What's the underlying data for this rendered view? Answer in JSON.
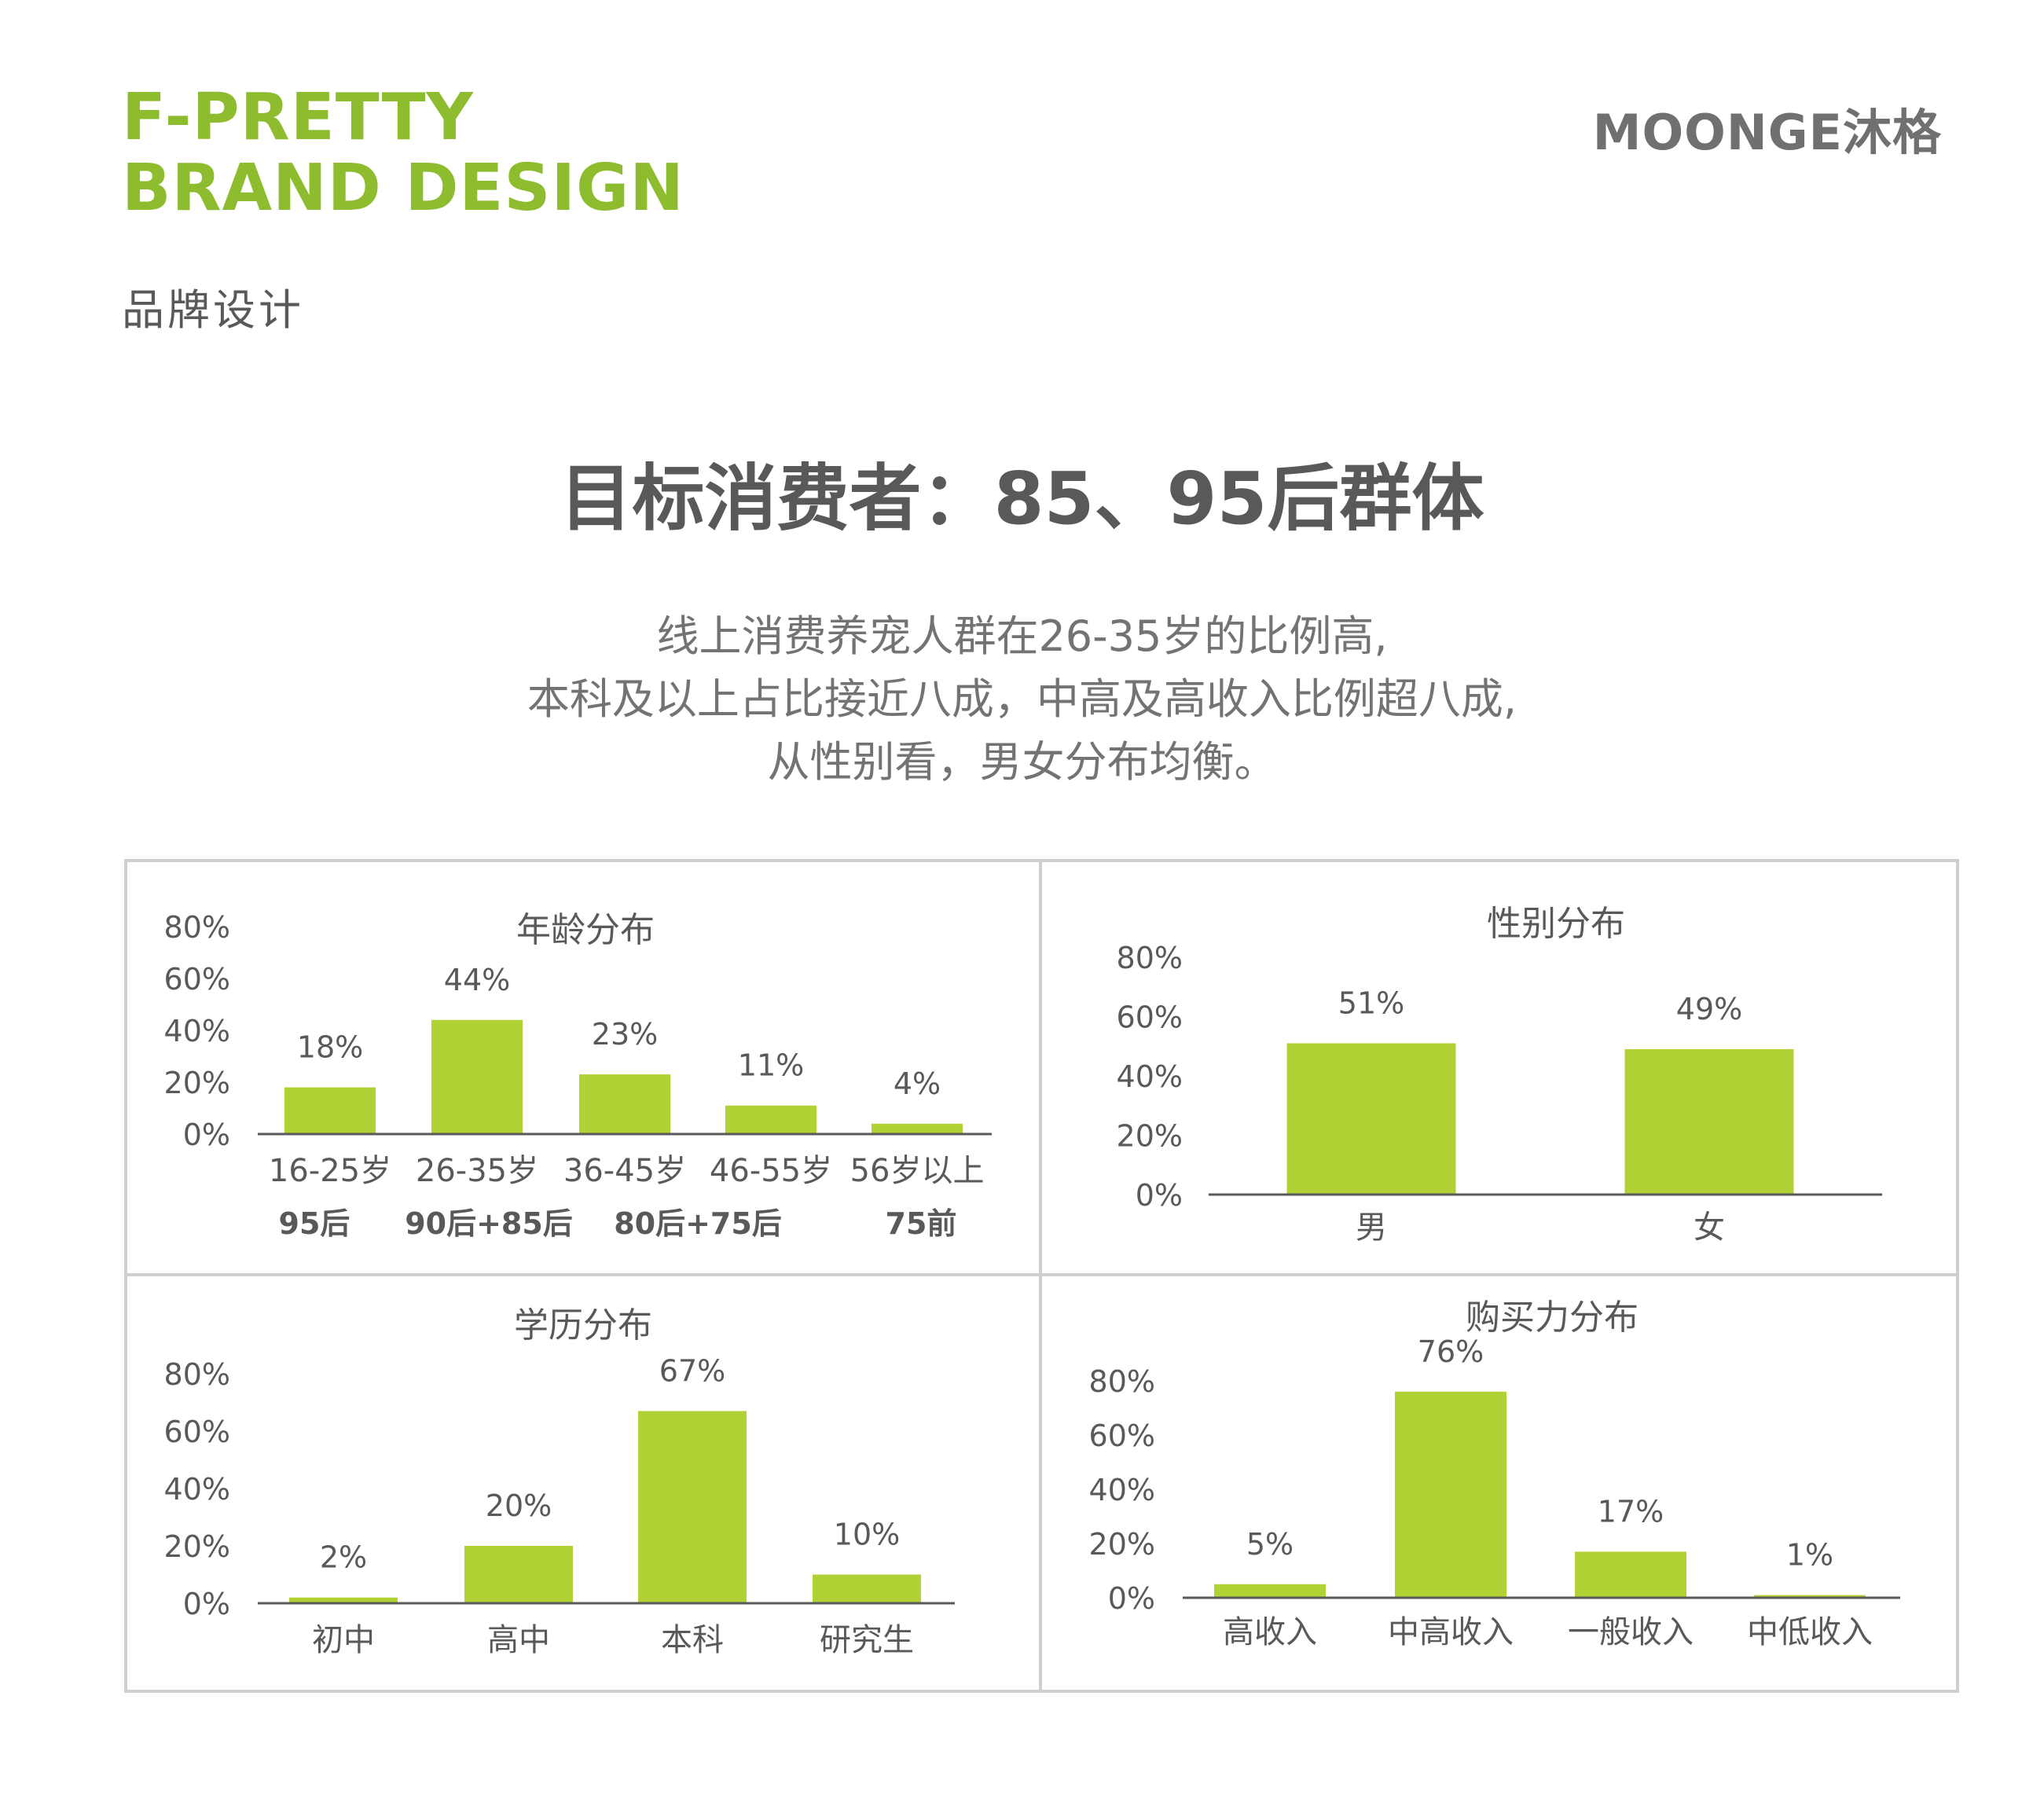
{
  "brand": {
    "line1": "F-PRETTY",
    "line2": "BRAND DESIGN",
    "subtitle": "品牌设计"
  },
  "logo": {
    "text": "MOONGE沐格"
  },
  "headline": "目标消费者：85、95后群体",
  "intro": [
    "线上消费养宠人群在26-35岁的比例高,",
    "本科及以上占比接近八成，中高及高收入比例超八成,",
    "从性别看，男女分布均衡。"
  ],
  "colors": {
    "bar": "#b1d235",
    "brand": "#8dbc2e",
    "text": "#595959",
    "border": "#cfcfcf"
  },
  "chart_data": [
    {
      "type": "bar",
      "title": "年龄分布",
      "categories": [
        "16-25岁",
        "26-35岁",
        "36-45岁",
        "46-55岁",
        "56岁以上"
      ],
      "values": [
        18,
        44,
        23,
        11,
        4
      ],
      "value_labels": [
        "18%",
        "44%",
        "23%",
        "11%",
        "4%"
      ],
      "group_labels": [
        "95后",
        "90后+85后",
        "80后+75后",
        "75前"
      ],
      "yticks": [
        "0%",
        "20%",
        "40%",
        "60%",
        "80%"
      ],
      "ylim": [
        0,
        80
      ]
    },
    {
      "type": "bar",
      "title": "性别分布",
      "categories": [
        "男",
        "女"
      ],
      "values": [
        51,
        49
      ],
      "value_labels": [
        "51%",
        "49%"
      ],
      "yticks": [
        "0%",
        "20%",
        "40%",
        "60%",
        "80%"
      ],
      "ylim": [
        0,
        80
      ]
    },
    {
      "type": "bar",
      "title": "学历分布",
      "categories": [
        "初中",
        "高中",
        "本科",
        "研究生"
      ],
      "values": [
        2,
        20,
        67,
        10
      ],
      "value_labels": [
        "2%",
        "20%",
        "67%",
        "10%"
      ],
      "yticks": [
        "0%",
        "20%",
        "40%",
        "60%",
        "80%"
      ],
      "ylim": [
        0,
        80
      ]
    },
    {
      "type": "bar",
      "title": "购买力分布",
      "categories": [
        "高收入",
        "中高收入",
        "一般收入",
        "中低收入"
      ],
      "values": [
        5,
        76,
        17,
        1
      ],
      "value_labels": [
        "5%",
        "76%",
        "17%",
        "1%"
      ],
      "yticks": [
        "0%",
        "20%",
        "40%",
        "60%",
        "80%"
      ],
      "ylim": [
        0,
        80
      ]
    }
  ]
}
